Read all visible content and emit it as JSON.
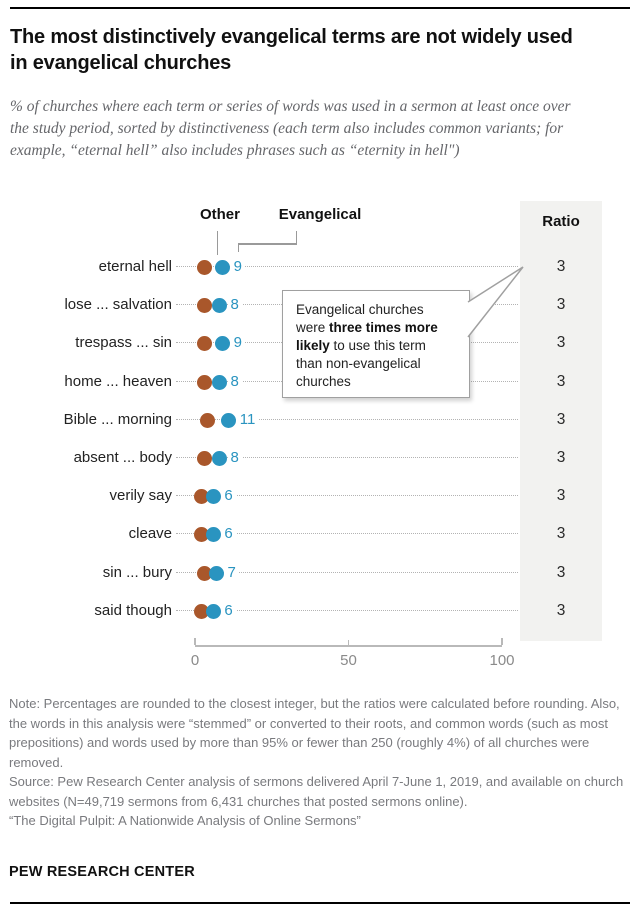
{
  "title": "The most distinctively evangelical terms are not widely used in evangelical churches",
  "subtitle": "% of churches where each term or series of words was used in a sermon at least once over the study period, sorted by distinctiveness (each term also includes common variants; for example, “eternal hell” also includes phrases such as “eternity in hell\")",
  "ratio_header": "Ratio",
  "callout": {
    "text_pre": "Evangelical churches were ",
    "text_bold": "three times more likely",
    "text_post": " to use this term than non-evangelical churches"
  },
  "colors": {
    "other": "#a9572b",
    "evangelical": "#2a94c0",
    "ratio_panel": "#f2f2f0"
  },
  "chart_data": {
    "type": "scatter",
    "subtype": "dot-plot",
    "categories": [
      "eternal hell",
      "lose ... salvation",
      "trespass ... sin",
      "home ... heaven",
      "Bible ... morning",
      "absent ... body",
      "verily say",
      "cleave",
      "sin ... bury",
      "said though"
    ],
    "series": [
      {
        "name": "Other",
        "values": [
          3,
          3,
          3,
          3,
          4,
          3,
          2,
          2,
          3,
          2
        ]
      },
      {
        "name": "Evangelical",
        "values": [
          9,
          8,
          9,
          8,
          11,
          8,
          6,
          6,
          7,
          6
        ]
      }
    ],
    "ratios": [
      3,
      3,
      3,
      3,
      3,
      3,
      3,
      3,
      3,
      3
    ],
    "xlim": [
      0,
      100
    ],
    "x_ticks": [
      "0",
      "50",
      "100"
    ],
    "legend_position": "top",
    "grid": "dotted row leaders"
  },
  "footer": {
    "note": "Note: Percentages are rounded to the closest integer, but the ratios were calculated before rounding. Also, the words in this analysis were “stemmed” or converted to their roots, and common words (such as most prepositions) and words used by more than 95% or fewer than 250 (roughly 4%) of all churches were removed.",
    "source": "Source: Pew Research Center analysis of sermons delivered April 7-June 1, 2019, and available on church websites (N=49,719 sermons from 6,431 churches that posted sermons online).",
    "report": "“The Digital Pulpit: A Nationwide Analysis of Online Sermons”",
    "brand": "PEW RESEARCH CENTER"
  }
}
